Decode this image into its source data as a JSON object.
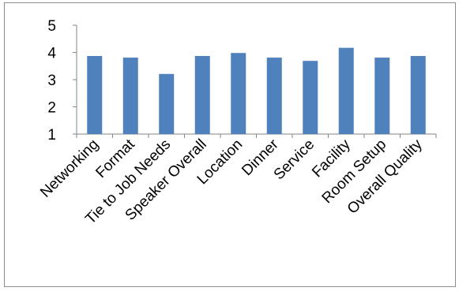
{
  "chart_data": {
    "type": "bar",
    "categories": [
      "Networking",
      "Format",
      "Tie to Job Needs",
      "Speaker Overall",
      "Location",
      "Dinner",
      "Service",
      "Facility",
      "Room Setup",
      "Overall Quality"
    ],
    "values": [
      3.87,
      3.81,
      3.21,
      3.87,
      3.98,
      3.81,
      3.69,
      4.17,
      3.81,
      3.87
    ],
    "title": "",
    "xlabel": "",
    "ylabel": "",
    "ylim": [
      1,
      5
    ],
    "yticks": [
      "1",
      "2",
      "3",
      "4",
      "5"
    ],
    "grid": false,
    "legend": "none",
    "colors": {
      "bar": "#4f81bd",
      "axis": "#868686",
      "frame": "#8c8c8c"
    }
  }
}
